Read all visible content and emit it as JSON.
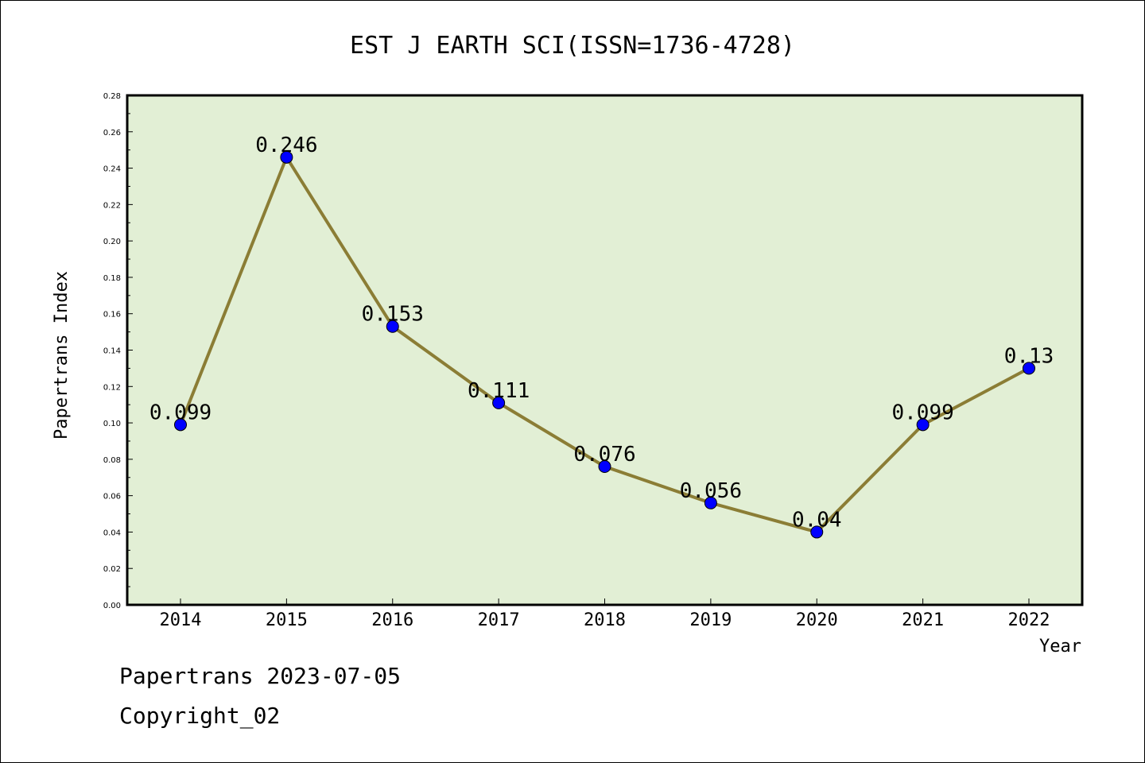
{
  "chart_data": {
    "type": "line",
    "title": "EST J EARTH SCI(ISSN=1736-4728)",
    "xlabel": "Year",
    "ylabel": "Papertrans Index",
    "categories": [
      "2014",
      "2015",
      "2016",
      "2017",
      "2018",
      "2019",
      "2020",
      "2021",
      "2022"
    ],
    "values": [
      0.099,
      0.246,
      0.153,
      0.111,
      0.076,
      0.056,
      0.04,
      0.099,
      0.13
    ],
    "data_labels": [
      "0.099",
      "0.246",
      "0.153",
      "0.111",
      "0.076",
      "0.056",
      "0.04",
      "0.099",
      "0.13"
    ],
    "ylim": [
      0,
      0.28
    ],
    "yticks": [
      "0.00",
      "0.02",
      "0.04",
      "0.06",
      "0.08",
      "0.10",
      "0.12",
      "0.14",
      "0.16",
      "0.18",
      "0.20",
      "0.22",
      "0.24",
      "0.26",
      "0.28"
    ],
    "grid": false,
    "colors": {
      "plot_background": "#e2efd5",
      "line": "#8b7d35",
      "marker": "#0000ff"
    }
  },
  "footer": {
    "line1": "Papertrans 2023-07-05",
    "line2": "Copyright_02"
  }
}
